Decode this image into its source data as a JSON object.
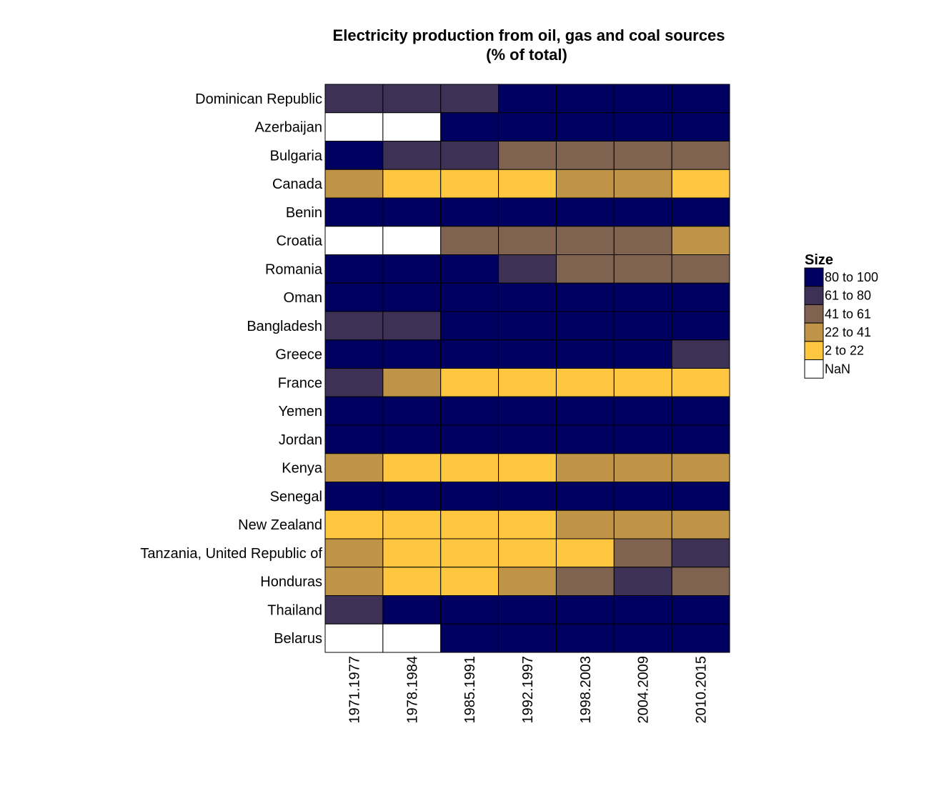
{
  "chart_data": {
    "type": "heatmap",
    "title": "Electricity production from oil, gas and coal sources",
    "subtitle": "(% of total)",
    "x": [
      "1971.1977",
      "1978.1984",
      "1985.1991",
      "1992.1997",
      "1998.2003",
      "2004.2009",
      "2010.2015"
    ],
    "y": [
      "Dominican Republic",
      "Azerbaijan",
      "Bulgaria",
      "Canada",
      "Benin",
      "Croatia",
      "Romania",
      "Oman",
      "Bangladesh",
      "Greece",
      "France",
      "Yemen",
      "Jordan",
      "Kenya",
      "Senegal",
      "New Zealand",
      "Tanzania, United Republic of",
      "Honduras",
      "Thailand",
      "Belarus"
    ],
    "values": [
      [
        "61 to 80",
        "61 to 80",
        "61 to 80",
        "80 to 100",
        "80 to 100",
        "80 to 100",
        "80 to 100"
      ],
      [
        "NaN",
        "NaN",
        "80 to 100",
        "80 to 100",
        "80 to 100",
        "80 to 100",
        "80 to 100"
      ],
      [
        "80 to 100",
        "61 to 80",
        "61 to 80",
        "41 to 61",
        "41 to 61",
        "41 to 61",
        "41 to 61"
      ],
      [
        "22 to 41",
        "2 to 22",
        "2 to 22",
        "2 to 22",
        "22 to 41",
        "22 to 41",
        "2 to 22"
      ],
      [
        "80 to 100",
        "80 to 100",
        "80 to 100",
        "80 to 100",
        "80 to 100",
        "80 to 100",
        "80 to 100"
      ],
      [
        "NaN",
        "NaN",
        "41 to 61",
        "41 to 61",
        "41 to 61",
        "41 to 61",
        "22 to 41"
      ],
      [
        "80 to 100",
        "80 to 100",
        "80 to 100",
        "61 to 80",
        "41 to 61",
        "41 to 61",
        "41 to 61"
      ],
      [
        "80 to 100",
        "80 to 100",
        "80 to 100",
        "80 to 100",
        "80 to 100",
        "80 to 100",
        "80 to 100"
      ],
      [
        "61 to 80",
        "61 to 80",
        "80 to 100",
        "80 to 100",
        "80 to 100",
        "80 to 100",
        "80 to 100"
      ],
      [
        "80 to 100",
        "80 to 100",
        "80 to 100",
        "80 to 100",
        "80 to 100",
        "80 to 100",
        "61 to 80"
      ],
      [
        "61 to 80",
        "22 to 41",
        "2 to 22",
        "2 to 22",
        "2 to 22",
        "2 to 22",
        "2 to 22"
      ],
      [
        "80 to 100",
        "80 to 100",
        "80 to 100",
        "80 to 100",
        "80 to 100",
        "80 to 100",
        "80 to 100"
      ],
      [
        "80 to 100",
        "80 to 100",
        "80 to 100",
        "80 to 100",
        "80 to 100",
        "80 to 100",
        "80 to 100"
      ],
      [
        "22 to 41",
        "2 to 22",
        "2 to 22",
        "2 to 22",
        "22 to 41",
        "22 to 41",
        "22 to 41"
      ],
      [
        "80 to 100",
        "80 to 100",
        "80 to 100",
        "80 to 100",
        "80 to 100",
        "80 to 100",
        "80 to 100"
      ],
      [
        "2 to 22",
        "2 to 22",
        "2 to 22",
        "2 to 22",
        "22 to 41",
        "22 to 41",
        "22 to 41"
      ],
      [
        "22 to 41",
        "2 to 22",
        "2 to 22",
        "2 to 22",
        "2 to 22",
        "41 to 61",
        "61 to 80"
      ],
      [
        "22 to 41",
        "2 to 22",
        "2 to 22",
        "22 to 41",
        "41 to 61",
        "61 to 80",
        "41 to 61"
      ],
      [
        "61 to 80",
        "80 to 100",
        "80 to 100",
        "80 to 100",
        "80 to 100",
        "80 to 100",
        "80 to 100"
      ],
      [
        "NaN",
        "NaN",
        "80 to 100",
        "80 to 100",
        "80 to 100",
        "80 to 100",
        "80 to 100"
      ]
    ],
    "legend": {
      "title": "Size",
      "placement": "right",
      "entries": [
        {
          "label": "80 to 100",
          "color": "#000060"
        },
        {
          "label": "61 to 80",
          "color": "#3d3255"
        },
        {
          "label": "41 to 61",
          "color": "#7f6350"
        },
        {
          "label": "22 to 41",
          "color": "#c09446"
        },
        {
          "label": "2 to 22",
          "color": "#ffc640"
        },
        {
          "label": "NaN",
          "color": "#ffffff"
        }
      ]
    },
    "grid": false
  }
}
